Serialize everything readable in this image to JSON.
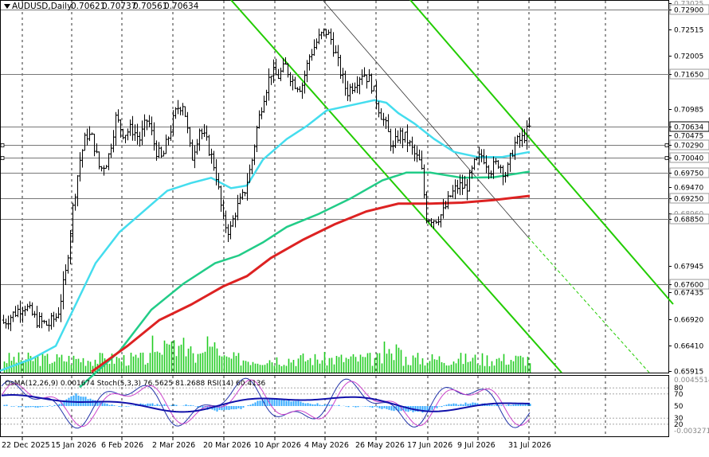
{
  "symbol_label": "AUDUSD,Daily",
  "ohlc": [
    "0.70621",
    "0.70737",
    "0.70561",
    "0.70634"
  ],
  "main_price_labels": [
    {
      "price": 0.73025,
      "text": "0.73025",
      "muted": true
    },
    {
      "price": 0.729,
      "text": "0.72900",
      "box": true
    },
    {
      "price": 0.72515,
      "text": "0.72515"
    },
    {
      "price": 0.72005,
      "text": "0.72005"
    },
    {
      "price": 0.7165,
      "text": "0.71650",
      "box": true
    },
    {
      "price": 0.70985,
      "text": "0.70985"
    },
    {
      "price": 0.70634,
      "text": "0.70634",
      "current": true
    },
    {
      "price": 0.70475,
      "text": "0.70475"
    },
    {
      "price": 0.7029,
      "text": "0.70290",
      "box": true
    },
    {
      "price": 0.7004,
      "text": "0.70040",
      "box": true
    },
    {
      "price": 0.6975,
      "text": "0.69750",
      "box": true
    },
    {
      "price": 0.6947,
      "text": "0.69470"
    },
    {
      "price": 0.6925,
      "text": "0.69250",
      "box": true
    },
    {
      "price": 0.6896,
      "text": "0.68960",
      "muted": true
    },
    {
      "price": 0.6885,
      "text": "0.68850",
      "box": true
    },
    {
      "price": 0.67945,
      "text": "0.67945"
    },
    {
      "price": 0.676,
      "text": "0.67600",
      "box": true
    },
    {
      "price": 0.67435,
      "text": "0.67435"
    },
    {
      "price": 0.6692,
      "text": "0.66920"
    },
    {
      "price": 0.6641,
      "text": "0.66410"
    },
    {
      "price": 0.65915,
      "text": "0.65915"
    }
  ],
  "horizontal_levels": [
    0.729,
    0.7165,
    0.70634,
    0.7029,
    0.7004,
    0.6975,
    0.6925,
    0.6885,
    0.676
  ],
  "indicator_label": "OsMA(12,26,9) 0.001674  Stoch(5,3,3) 76.5625 81.2688  RSI(14) 60.4136",
  "indicator_scale": [
    {
      "y": 0.045,
      "text": "0.0045514",
      "muted": true
    },
    {
      "y": 0.8,
      "text": "80"
    },
    {
      "y": 0.7,
      "text": "70"
    },
    {
      "y": 0.5,
      "text": "50"
    },
    {
      "y": 0.3,
      "text": "30"
    },
    {
      "y": 0.2,
      "text": "20"
    },
    {
      "y": -0.02,
      "text": "-0.003271",
      "muted": true
    }
  ],
  "x_dates": [
    "22 Dec 2025",
    "15 Jan 2026",
    "6 Feb 2026",
    "2 Mar 2026",
    "20 Mar 2026",
    "10 Apr 2026",
    "4 May 2026",
    "26 May 2026",
    "17 Jun 2026",
    "9 Jul 2026",
    "31 Jul 2026"
  ],
  "colors": {
    "ema_fast": "#44ddee",
    "ema_mid": "#22cc88",
    "ema_slow": "#dd2222",
    "channel": "#22cc00",
    "osma": "#33aaff",
    "volumes": "#22cc22",
    "stoch_main": "#2233aa",
    "stoch_signal": "#cc44cc",
    "rsi": "#1111aa"
  }
}
